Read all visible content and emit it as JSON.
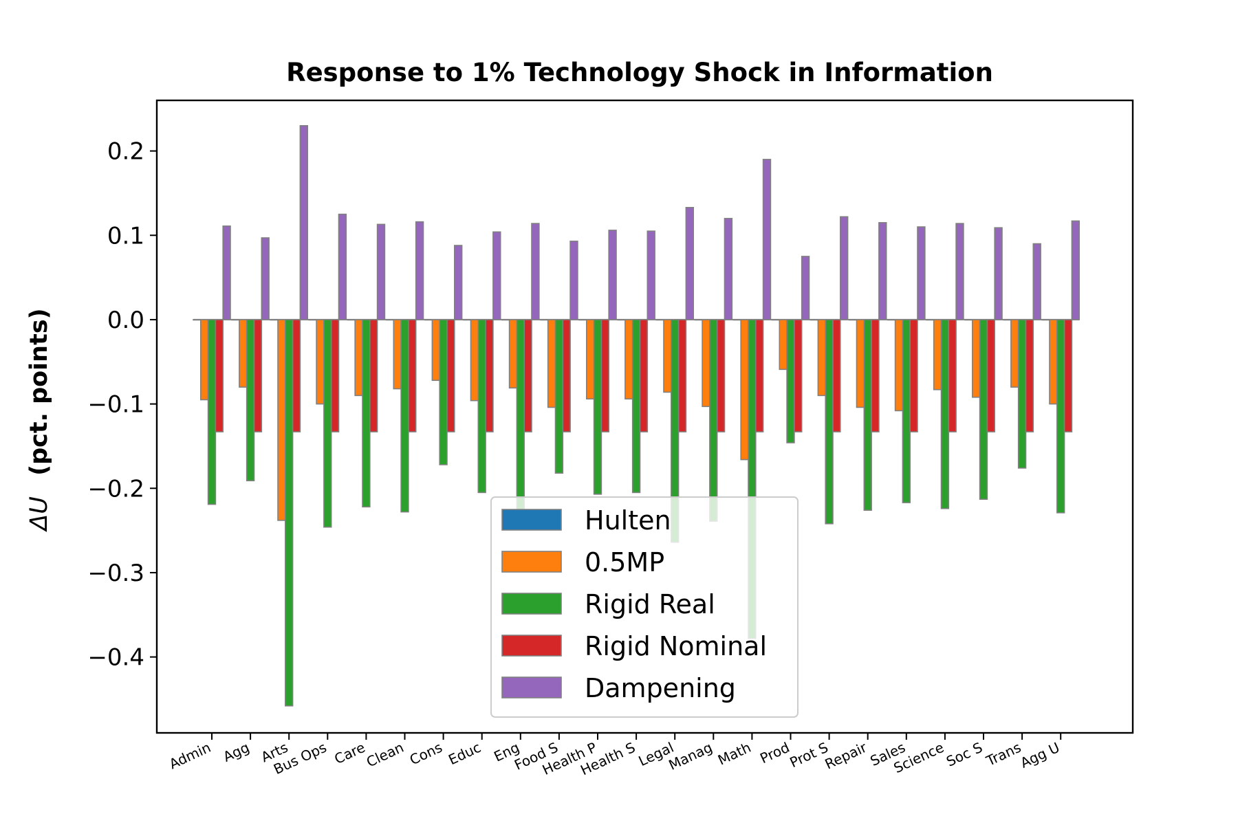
{
  "chart_data": {
    "type": "bar",
    "title": "Response to 1% Technology Shock in Information",
    "xlabel": "",
    "ylabel": "(pct. points)",
    "ylabel_symbol": "ΔU",
    "ylim": [
      -0.49,
      0.26
    ],
    "yticks": [
      0.2,
      0.1,
      0.0,
      -0.1,
      -0.2,
      -0.3,
      -0.4
    ],
    "ytick_labels": [
      "0.2",
      "0.1",
      "0.0",
      "−0.1",
      "−0.2",
      "−0.3",
      "−0.4"
    ],
    "categories": [
      "Admin",
      "Agg",
      "Arts",
      "Bus Ops",
      "Care",
      "Clean",
      "Cons",
      "Educ",
      "Eng",
      "Food S",
      "Health P",
      "Health S",
      "Legal",
      "Manag",
      "Math",
      "Prod",
      "Prot S",
      "Repair",
      "Sales",
      "Science",
      "Soc S",
      "Trans",
      "Agg U"
    ],
    "series": [
      {
        "name": "Hulten",
        "color": "#1f77b4",
        "values": [
          0,
          0,
          0,
          0,
          0,
          0,
          0,
          0,
          0,
          0,
          0,
          0,
          0,
          0,
          0,
          0,
          0,
          0,
          0,
          0,
          0,
          0,
          0
        ]
      },
      {
        "name": "0.5MP",
        "color": "#ff7f0e",
        "values": [
          -0.095,
          -0.08,
          -0.238,
          -0.1,
          -0.09,
          -0.082,
          -0.072,
          -0.096,
          -0.081,
          -0.104,
          -0.094,
          -0.094,
          -0.086,
          -0.103,
          -0.166,
          -0.059,
          -0.09,
          -0.104,
          -0.108,
          -0.083,
          -0.092,
          -0.08,
          -0.1
        ]
      },
      {
        "name": "Rigid Real",
        "color": "#2ca02c",
        "values": [
          -0.219,
          -0.191,
          -0.458,
          -0.246,
          -0.222,
          -0.228,
          -0.172,
          -0.205,
          -0.23,
          -0.182,
          -0.207,
          -0.205,
          -0.264,
          -0.239,
          -0.378,
          -0.146,
          -0.242,
          -0.226,
          -0.217,
          -0.224,
          -0.213,
          -0.176,
          -0.229
        ]
      },
      {
        "name": "Rigid Nominal",
        "color": "#d62728",
        "values": [
          -0.133,
          -0.133,
          -0.133,
          -0.133,
          -0.133,
          -0.133,
          -0.133,
          -0.133,
          -0.133,
          -0.133,
          -0.133,
          -0.133,
          -0.133,
          -0.133,
          -0.133,
          -0.133,
          -0.133,
          -0.133,
          -0.133,
          -0.133,
          -0.133,
          -0.133,
          -0.133
        ]
      },
      {
        "name": "Dampening",
        "color": "#9467bd",
        "values": [
          0.111,
          0.097,
          0.23,
          0.125,
          0.113,
          0.116,
          0.088,
          0.104,
          0.114,
          0.093,
          0.106,
          0.105,
          0.133,
          0.12,
          0.19,
          0.075,
          0.122,
          0.115,
          0.11,
          0.114,
          0.109,
          0.09,
          0.117
        ]
      }
    ],
    "legend_position": "lower-center",
    "grid": false
  }
}
